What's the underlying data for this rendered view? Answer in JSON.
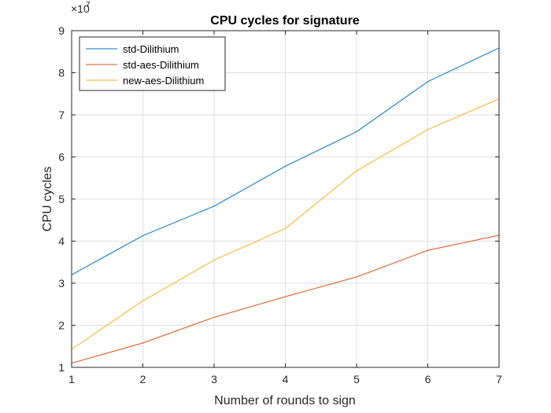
{
  "chart_data": {
    "type": "line",
    "title": "CPU cycles for signature",
    "xlabel": "Number of rounds to sign",
    "ylabel": "CPU cycles",
    "x": [
      1,
      2,
      3,
      4,
      5,
      6,
      7
    ],
    "xlim": [
      1,
      7
    ],
    "ylim": [
      10000000,
      90000000
    ],
    "xticks": [
      "1",
      "2",
      "3",
      "4",
      "5",
      "6",
      "7"
    ],
    "yticks": [
      "1",
      "2",
      "3",
      "4",
      "5",
      "6",
      "7",
      "8",
      "9"
    ],
    "y_exponent": {
      "base": "×10",
      "power": "7"
    },
    "grid": true,
    "legend_position": "top-left",
    "series": [
      {
        "name": "std-Dilithium",
        "color": "#0072BD",
        "values": [
          32000000,
          41300000,
          48300000,
          57800000,
          66000000,
          77900000,
          85900000
        ]
      },
      {
        "name": "std-aes-Dilithium",
        "color": "#D95319",
        "values": [
          11000000,
          15800000,
          21900000,
          26800000,
          31500000,
          37800000,
          41400000
        ]
      },
      {
        "name": "new-aes-Dilithium",
        "color": "#EDB120",
        "values": [
          14300000,
          25800000,
          35500000,
          43000000,
          56700000,
          66500000,
          73800000
        ]
      }
    ]
  }
}
